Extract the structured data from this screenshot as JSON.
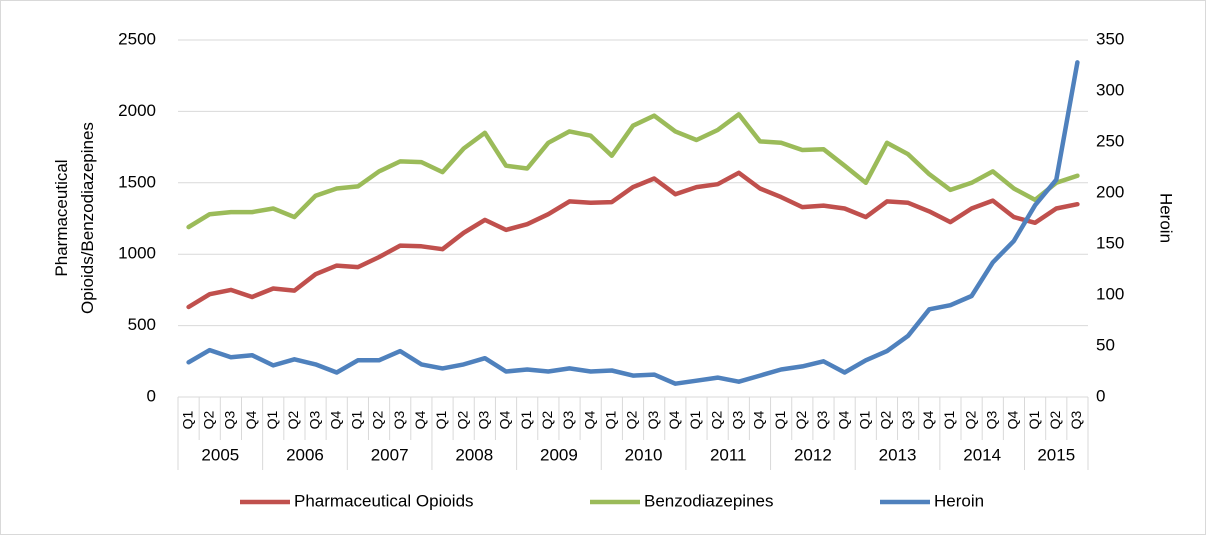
{
  "chart_data": {
    "type": "line",
    "y_label": "Pharmaceutical Opioids/Benzodiazepines",
    "y2_label": "Heroin",
    "categories": [
      "Q1",
      "Q2",
      "Q3",
      "Q4",
      "Q1",
      "Q2",
      "Q3",
      "Q4",
      "Q1",
      "Q2",
      "Q3",
      "Q4",
      "Q1",
      "Q2",
      "Q3",
      "Q4",
      "Q1",
      "Q2",
      "Q3",
      "Q4",
      "Q1",
      "Q2",
      "Q3",
      "Q4",
      "Q1",
      "Q2",
      "Q3",
      "Q4",
      "Q1",
      "Q2",
      "Q3",
      "Q4",
      "Q1",
      "Q2",
      "Q3",
      "Q4",
      "Q1",
      "Q2",
      "Q3",
      "Q4",
      "Q1",
      "Q2",
      "Q3"
    ],
    "groups": [
      "2005",
      "2006",
      "2007",
      "2008",
      "2009",
      "2010",
      "2011",
      "2012",
      "2013",
      "2014",
      "2015"
    ],
    "series": [
      {
        "name": "Pharmaceutical Opioids",
        "color": "#c0504d",
        "values": [
          630,
          720,
          750,
          700,
          760,
          745,
          860,
          920,
          910,
          980,
          1060,
          1055,
          1035,
          1150,
          1240,
          1170,
          1210,
          1280,
          1370,
          1360,
          1365,
          1470,
          1530,
          1420,
          1470,
          1490,
          1570,
          1460,
          1400,
          1330,
          1340,
          1320,
          1260,
          1370,
          1360,
          1300,
          1225,
          1320,
          1375,
          1260,
          1220,
          1320,
          1350
        ]
      },
      {
        "name": "Benzodiazepines",
        "color": "#9bbb59",
        "values": [
          1190,
          1280,
          1295,
          1295,
          1320,
          1260,
          1410,
          1460,
          1475,
          1580,
          1650,
          1645,
          1575,
          1740,
          1850,
          1620,
          1600,
          1780,
          1860,
          1830,
          1690,
          1900,
          1970,
          1860,
          1800,
          1870,
          1980,
          1790,
          1780,
          1730,
          1735,
          1620,
          1500,
          1780,
          1700,
          1560,
          1450,
          1500,
          1580,
          1460,
          1380,
          1500,
          1550
        ]
      },
      {
        "name": "Heroin",
        "color": "#4f81bd",
        "axis": "y2",
        "values": [
          34,
          46,
          39,
          41,
          31,
          37,
          32,
          24,
          36,
          36,
          45,
          32,
          28,
          32,
          38,
          25,
          27,
          25,
          28,
          25,
          26,
          21,
          22,
          13,
          16,
          19,
          15,
          21,
          27,
          30,
          35,
          24,
          36,
          45,
          60,
          86,
          90,
          99,
          132,
          153,
          188,
          213,
          328
        ]
      }
    ],
    "ylim": [
      0,
      2500
    ],
    "yticks": [
      0,
      500,
      1000,
      1500,
      2000,
      2500
    ],
    "y2lim": [
      0,
      350
    ],
    "y2ticks": [
      0,
      50,
      100,
      150,
      200,
      250,
      300,
      350
    ],
    "grid": true,
    "legend": "bottom"
  }
}
